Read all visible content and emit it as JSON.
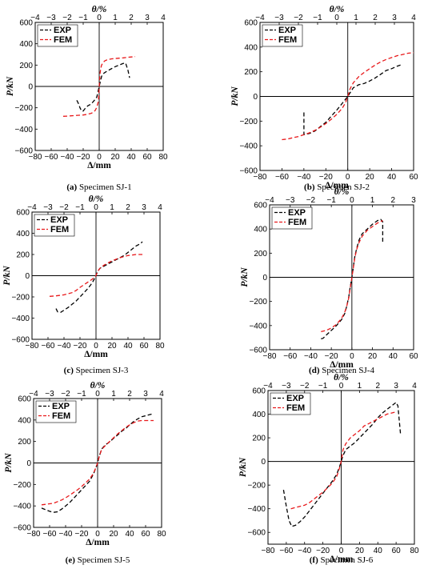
{
  "colors": {
    "exp": "#000000",
    "fem": "#e8181a"
  },
  "chart_data": [
    {
      "type": "line",
      "caption_label": "(a)",
      "caption_text": "Specimen SJ-1",
      "xlabel": "Δ/mm",
      "ylabel": "P/kN",
      "top_xlabel": "θ/%",
      "xlim": [
        -80,
        80
      ],
      "ylim": [
        -600,
        600
      ],
      "top_xlim": [
        -4,
        4
      ],
      "xticks": [
        "−80",
        "−60",
        "−40",
        "−20",
        "0",
        "20",
        "40",
        "60",
        "80"
      ],
      "yticks": [
        "−600",
        "−400",
        "−200",
        "0",
        "200",
        "400",
        "600"
      ],
      "top_xticks": [
        "−4",
        "−3",
        "−2",
        "−1",
        "0",
        "1",
        "2",
        "3",
        "4"
      ],
      "legend": "top-left",
      "grid": false,
      "series": [
        {
          "name": "EXP",
          "x": [
            -28,
            -26,
            -24,
            -22,
            -20,
            -18,
            -14,
            -10,
            -6,
            -3,
            0,
            3,
            6,
            10,
            15,
            20,
            25,
            30,
            33,
            36,
            38
          ],
          "y": [
            -130,
            -160,
            -200,
            -230,
            -230,
            -210,
            -180,
            -165,
            -130,
            -100,
            0,
            95,
            125,
            145,
            165,
            185,
            200,
            215,
            220,
            150,
            80
          ]
        },
        {
          "name": "FEM",
          "x": [
            -45,
            -40,
            -35,
            -30,
            -25,
            -20,
            -15,
            -10,
            -7,
            -5,
            -3,
            -1,
            0,
            1,
            2,
            3,
            5,
            7,
            10,
            15,
            20,
            25,
            30,
            35,
            40,
            45
          ],
          "y": [
            -280,
            -278,
            -275,
            -272,
            -270,
            -268,
            -262,
            -252,
            -240,
            -225,
            -195,
            -140,
            0,
            120,
            170,
            200,
            225,
            240,
            250,
            258,
            262,
            265,
            268,
            272,
            276,
            280
          ]
        }
      ]
    },
    {
      "type": "line",
      "caption_label": "(b)",
      "caption_text": "Specimen SJ-2",
      "xlabel": "Δ/mm",
      "ylabel": "P/kN",
      "top_xlabel": "θ/%",
      "xlim": [
        -80,
        60
      ],
      "ylim": [
        -600,
        600
      ],
      "top_xlim": [
        -4,
        4
      ],
      "xticks": [
        "−80",
        "−60",
        "−40",
        "−20",
        "0",
        "20",
        "40",
        "60"
      ],
      "yticks": [
        "−600",
        "−400",
        "−200",
        "0",
        "200",
        "400",
        "600"
      ],
      "top_xticks": [
        "−4",
        "−3",
        "−2",
        "−1",
        "0",
        "1",
        "2",
        "3",
        "4"
      ],
      "legend": "top-left",
      "grid": false,
      "series": [
        {
          "name": "EXP",
          "x": [
            -40,
            -40,
            -35,
            -30,
            -25,
            -20,
            -15,
            -10,
            -5,
            0,
            5,
            10,
            15,
            20,
            25,
            30,
            35,
            40,
            45,
            50
          ],
          "y": [
            -130,
            -310,
            -300,
            -280,
            -245,
            -210,
            -160,
            -110,
            -55,
            0,
            70,
            95,
            105,
            125,
            150,
            180,
            210,
            225,
            245,
            260
          ]
        },
        {
          "name": "FEM",
          "x": [
            -60,
            -55,
            -50,
            -45,
            -40,
            -35,
            -30,
            -25,
            -20,
            -15,
            -10,
            -5,
            -2,
            0,
            2,
            5,
            10,
            15,
            20,
            25,
            30,
            35,
            40,
            45,
            50,
            55,
            60
          ],
          "y": [
            -350,
            -345,
            -335,
            -325,
            -310,
            -295,
            -275,
            -250,
            -220,
            -185,
            -145,
            -95,
            -50,
            0,
            60,
            110,
            160,
            195,
            225,
            255,
            280,
            300,
            315,
            330,
            340,
            350,
            355
          ]
        }
      ]
    },
    {
      "type": "line",
      "caption_label": "(c)",
      "caption_text": "Specimen SJ-3",
      "xlabel": "Δ/mm",
      "ylabel": "P/kN",
      "top_xlabel": "θ/%",
      "xlim": [
        -80,
        80
      ],
      "ylim": [
        -600,
        600
      ],
      "top_xlim": [
        -4,
        4
      ],
      "xticks": [
        "−80",
        "−60",
        "−40",
        "−20",
        "0",
        "20",
        "40",
        "60",
        "80"
      ],
      "yticks": [
        "−600",
        "−400",
        "−200",
        "0",
        "200",
        "400",
        "600"
      ],
      "top_xticks": [
        "−4",
        "−3",
        "−2",
        "−1",
        "0",
        "1",
        "2",
        "3",
        "4"
      ],
      "legend": "top-left",
      "grid": false,
      "series": [
        {
          "name": "EXP",
          "x": [
            -50,
            -48,
            -44,
            -40,
            -35,
            -30,
            -25,
            -20,
            -15,
            -10,
            -5,
            -2,
            0,
            2,
            5,
            10,
            15,
            20,
            25,
            30,
            35,
            40,
            45,
            50,
            55,
            58
          ],
          "y": [
            -310,
            -340,
            -345,
            -325,
            -300,
            -270,
            -240,
            -200,
            -160,
            -120,
            -70,
            -30,
            0,
            40,
            70,
            90,
            110,
            130,
            150,
            170,
            190,
            220,
            250,
            280,
            300,
            320
          ]
        },
        {
          "name": "FEM",
          "x": [
            -58,
            -50,
            -40,
            -30,
            -25,
            -20,
            -15,
            -10,
            -5,
            -2,
            0,
            2,
            5,
            10,
            15,
            20,
            25,
            30,
            35,
            40,
            45,
            50,
            55,
            58
          ],
          "y": [
            -195,
            -190,
            -180,
            -160,
            -140,
            -110,
            -85,
            -60,
            -35,
            -15,
            0,
            40,
            70,
            100,
            120,
            140,
            155,
            170,
            180,
            190,
            195,
            200,
            200,
            200
          ]
        }
      ]
    },
    {
      "type": "line",
      "caption_label": "(d)",
      "caption_text": "Specimen SJ-4",
      "xlabel": "Δ/mm",
      "ylabel": "P/kN",
      "top_xlabel": "θ/%",
      "xlim": [
        -80,
        60
      ],
      "ylim": [
        -600,
        600
      ],
      "top_xlim": [
        -4,
        3
      ],
      "xticks": [
        "−80",
        "−60",
        "−40",
        "−20",
        "0",
        "20",
        "40",
        "60"
      ],
      "yticks": [
        "−600",
        "−400",
        "−200",
        "0",
        "200",
        "400",
        "600"
      ],
      "top_xticks": [
        "−4",
        "−3",
        "−2",
        "−1",
        "0",
        "1",
        "2",
        "3"
      ],
      "legend": "top-left",
      "grid": false,
      "series": [
        {
          "name": "EXP",
          "x": [
            -30,
            -28,
            -25,
            -20,
            -15,
            -10,
            -7,
            -5,
            -3,
            -2,
            0,
            2,
            3,
            5,
            7,
            10,
            15,
            20,
            25,
            28,
            30,
            30
          ],
          "y": [
            -510,
            -505,
            -480,
            -440,
            -400,
            -350,
            -300,
            -240,
            -160,
            -100,
            0,
            120,
            180,
            250,
            310,
            360,
            400,
            440,
            470,
            480,
            460,
            280
          ]
        },
        {
          "name": "FEM",
          "x": [
            -30,
            -25,
            -20,
            -15,
            -10,
            -7,
            -5,
            -3,
            -2,
            0,
            2,
            3,
            5,
            7,
            10,
            15,
            20,
            25,
            30
          ],
          "y": [
            -450,
            -440,
            -420,
            -390,
            -340,
            -290,
            -240,
            -170,
            -110,
            0,
            110,
            170,
            240,
            290,
            340,
            390,
            420,
            450,
            470
          ]
        }
      ]
    },
    {
      "type": "line",
      "caption_label": "(e)",
      "caption_text": "Specimen SJ-5",
      "xlabel": "Δ/mm",
      "ylabel": "P/kN",
      "top_xlabel": "θ/%",
      "xlim": [
        -80,
        80
      ],
      "ylim": [
        -600,
        600
      ],
      "top_xlim": [
        -4,
        4
      ],
      "xticks": [
        "−80",
        "−60",
        "−40",
        "−20",
        "0",
        "20",
        "40",
        "60",
        "80"
      ],
      "yticks": [
        "−600",
        "−400",
        "−200",
        "0",
        "200",
        "400",
        "600"
      ],
      "top_xticks": [
        "−4",
        "−3",
        "−2",
        "−1",
        "0",
        "1",
        "2",
        "3",
        "4"
      ],
      "legend": "top-left",
      "grid": false,
      "series": [
        {
          "name": "EXP",
          "x": [
            -70,
            -65,
            -60,
            -55,
            -50,
            -45,
            -40,
            -35,
            -30,
            -25,
            -20,
            -15,
            -10,
            -5,
            -2,
            0,
            2,
            5,
            10,
            15,
            20,
            25,
            30,
            35,
            40,
            45,
            50,
            55,
            60,
            65,
            70
          ],
          "y": [
            -420,
            -435,
            -450,
            -460,
            -455,
            -430,
            -400,
            -370,
            -330,
            -290,
            -250,
            -210,
            -170,
            -100,
            -40,
            0,
            60,
            130,
            170,
            195,
            230,
            260,
            295,
            320,
            355,
            385,
            410,
            430,
            440,
            450,
            460
          ]
        },
        {
          "name": "FEM",
          "x": [
            -70,
            -65,
            -60,
            -55,
            -50,
            -45,
            -40,
            -35,
            -30,
            -25,
            -20,
            -15,
            -10,
            -5,
            -2,
            0,
            2,
            5,
            10,
            15,
            20,
            25,
            30,
            35,
            40,
            45,
            50,
            55,
            60,
            65,
            70
          ],
          "y": [
            -390,
            -385,
            -380,
            -375,
            -360,
            -345,
            -325,
            -300,
            -275,
            -250,
            -220,
            -185,
            -150,
            -95,
            -40,
            0,
            60,
            125,
            165,
            200,
            235,
            270,
            300,
            330,
            355,
            375,
            390,
            395,
            395,
            395,
            395
          ]
        }
      ]
    },
    {
      "type": "line",
      "caption_label": "(f)",
      "caption_text": "Specimen SJ-6",
      "xlabel": "Δ/mm",
      "ylabel": "P/kN",
      "top_xlabel": "θ/%",
      "xlim": [
        -80,
        80
      ],
      "ylim": [
        -700,
        600
      ],
      "top_xlim": [
        -4,
        4
      ],
      "xticks": [
        "−80",
        "−60",
        "−40",
        "−20",
        "0",
        "20",
        "40",
        "60",
        "80"
      ],
      "yticks": [
        "−600",
        "−400",
        "−200",
        "0",
        "200",
        "400",
        "600"
      ],
      "top_xticks": [
        "−4",
        "−3",
        "−2",
        "−1",
        "0",
        "1",
        "2",
        "3",
        "4"
      ],
      "legend": "top-left",
      "grid": false,
      "series": [
        {
          "name": "EXP",
          "x": [
            -63,
            -60,
            -57,
            -54,
            -50,
            -45,
            -40,
            -35,
            -30,
            -25,
            -20,
            -15,
            -10,
            -5,
            -2,
            0,
            2,
            5,
            10,
            15,
            20,
            25,
            30,
            35,
            40,
            45,
            50,
            55,
            60,
            62,
            65
          ],
          "y": [
            -240,
            -380,
            -500,
            -550,
            -540,
            -510,
            -470,
            -420,
            -370,
            -320,
            -270,
            -220,
            -170,
            -110,
            -50,
            0,
            50,
            100,
            130,
            160,
            200,
            240,
            280,
            320,
            370,
            410,
            440,
            470,
            500,
            470,
            220
          ]
        },
        {
          "name": "FEM",
          "x": [
            -55,
            -50,
            -45,
            -40,
            -35,
            -30,
            -25,
            -20,
            -15,
            -10,
            -5,
            -2,
            0,
            2,
            5,
            10,
            15,
            20,
            25,
            30,
            35,
            40,
            45,
            50,
            55,
            60
          ],
          "y": [
            -400,
            -390,
            -380,
            -370,
            -350,
            -320,
            -290,
            -260,
            -225,
            -185,
            -130,
            -60,
            0,
            100,
            150,
            200,
            230,
            260,
            300,
            320,
            340,
            360,
            380,
            400,
            410,
            420
          ]
        }
      ]
    }
  ]
}
